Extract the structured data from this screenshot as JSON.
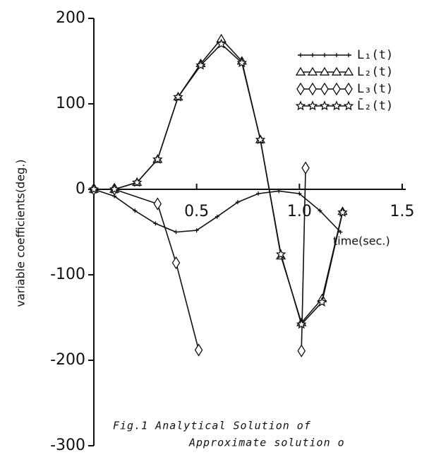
{
  "chart_data": {
    "type": "line",
    "ylabel": "variable coefficients(deg.)",
    "xlabel": "time(sec.)",
    "annotations": [
      "Fig.1 Analytical Solution of",
      "Approximate solution o"
    ],
    "xlim": [
      0,
      1.5
    ],
    "ylim": [
      -300,
      200
    ],
    "xticks": [
      0.5,
      {
        "value": 1,
        "label": "1.0"
      },
      1.5
    ],
    "yticks": [
      200,
      100,
      0,
      -100,
      -200,
      -300
    ],
    "legend": "upper right",
    "series": [
      {
        "name": "L₁(t)",
        "color": "#111",
        "marker": "tick",
        "x": [
          0,
          0.1,
          0.2,
          0.3,
          0.4,
          0.5,
          0.6,
          0.7,
          0.8,
          0.9,
          1.0,
          1.1,
          1.2
        ],
        "values": [
          0,
          -8,
          -25,
          -40,
          -50,
          -48,
          -32,
          -15,
          -5,
          -2,
          -5,
          -25,
          -50
        ]
      },
      {
        "name": "L₂(t)",
        "color": "#111",
        "marker": "triangle",
        "x": [
          0,
          0.1,
          0.21,
          0.31,
          0.41,
          0.52,
          0.62,
          0.72,
          0.81,
          0.91,
          1.01,
          1.11,
          1.21
        ],
        "values": [
          0,
          0,
          8,
          35,
          108,
          147,
          176,
          150,
          58,
          -78,
          -156,
          -128,
          -26
        ]
      },
      {
        "name": "L₃(t)",
        "color": "#111",
        "marker": "diamond",
        "x": [
          0,
          0.1,
          0.31,
          0.4,
          0.51,
          1.0,
          1.01,
          1.03
        ],
        "values": [
          0,
          0,
          -17,
          -86,
          -188,
          null,
          -189,
          25
        ]
      },
      {
        "name": "L̄₂(t)",
        "color": "#111",
        "marker": "star",
        "x": [
          0,
          0.1,
          0.21,
          0.31,
          0.41,
          0.52,
          0.62,
          0.72,
          0.81,
          0.91,
          1.01,
          1.11,
          1.21
        ],
        "values": [
          0,
          0,
          8,
          35,
          108,
          145,
          170,
          148,
          58,
          -76,
          -158,
          -132,
          -27
        ]
      }
    ]
  }
}
